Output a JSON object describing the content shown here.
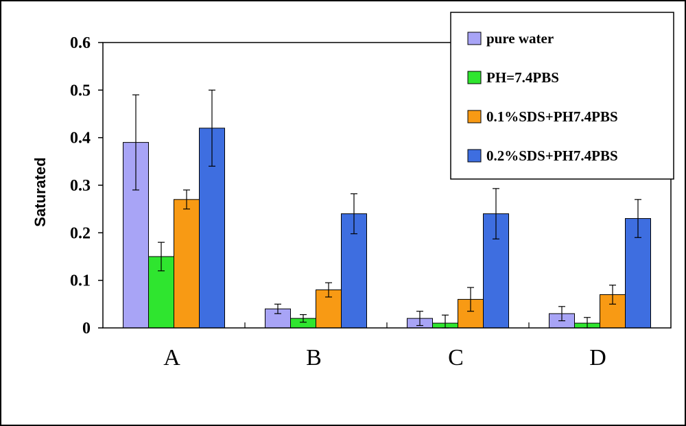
{
  "chart_data": {
    "type": "bar",
    "title": "",
    "xlabel": "",
    "ylabel": "Saturated",
    "ylim": [
      0,
      0.6
    ],
    "yticks": [
      "0",
      "0.1",
      "0.2",
      "0.3",
      "0.4",
      "0.5",
      "0.6"
    ],
    "categories": [
      "A",
      "B",
      "C",
      "D"
    ],
    "grid": false,
    "legend_position": "top-right",
    "series": [
      {
        "name": "pure water",
        "color": "#a8a4f6",
        "values": [
          0.39,
          0.04,
          0.02,
          0.03
        ],
        "errors": [
          0.1,
          0.01,
          0.015,
          0.015
        ]
      },
      {
        "name": "PH=7.4PBS",
        "color": "#2fe52f",
        "values": [
          0.15,
          0.02,
          0.01,
          0.01
        ],
        "errors": [
          0.03,
          0.008,
          0.017,
          0.012
        ]
      },
      {
        "name": "0.1%SDS+PH7.4PBS",
        "color": "#f89a14",
        "values": [
          0.27,
          0.08,
          0.06,
          0.07
        ],
        "errors": [
          0.02,
          0.015,
          0.025,
          0.02
        ]
      },
      {
        "name": "0.2%SDS+PH7.4PBS",
        "color": "#3e6ee0",
        "values": [
          0.42,
          0.24,
          0.24,
          0.23
        ],
        "errors": [
          0.08,
          0.042,
          0.053,
          0.04
        ]
      }
    ]
  }
}
